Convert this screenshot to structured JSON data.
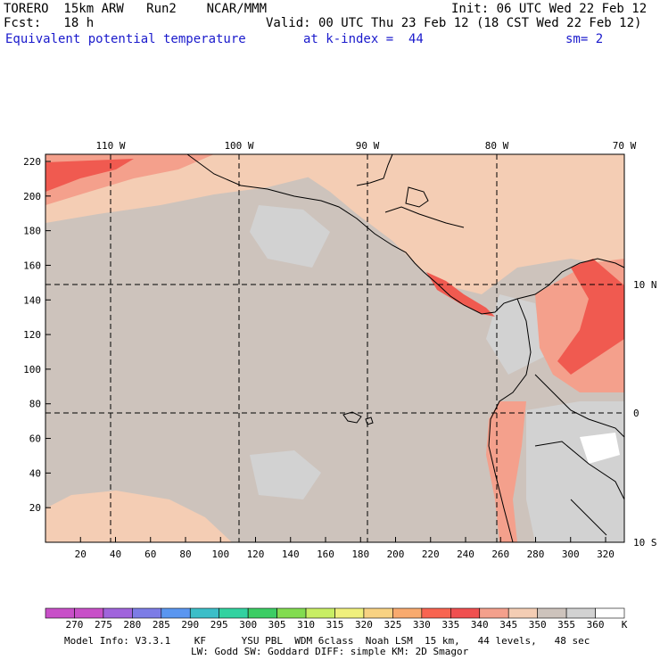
{
  "header": {
    "model": "TORERO  15km ARW   Run2    NCAR/MMM",
    "init": "Init: 06 UTC Wed 22 Feb 12",
    "fcst": "Fcst:   18 h",
    "valid": "Valid: 00 UTC Thu 23 Feb 12 (18 CST Wed 22 Feb 12)",
    "field": "Equivalent potential temperature",
    "level": "at k-index =  44",
    "smooth": "sm= 2"
  },
  "axes": {
    "lon_labels": [
      "110 W",
      "100 W",
      "90 W",
      "80 W",
      "70 W"
    ],
    "lat_labels": [
      "10 N",
      "0",
      "10 S"
    ],
    "y_ticks": [
      "20",
      "40",
      "60",
      "80",
      "100",
      "120",
      "140",
      "160",
      "180",
      "200",
      "220"
    ],
    "x_ticks": [
      "20",
      "40",
      "60",
      "80",
      "100",
      "120",
      "140",
      "160",
      "180",
      "200",
      "220",
      "240",
      "260",
      "280",
      "300",
      "320"
    ]
  },
  "colorbar": {
    "labels": [
      "270",
      "275",
      "280",
      "285",
      "290",
      "295",
      "300",
      "305",
      "310",
      "315",
      "320",
      "325",
      "330",
      "335",
      "340",
      "345",
      "350",
      "355",
      "360"
    ],
    "unit": "K",
    "colors": [
      "#c850c8",
      "#a064dc",
      "#7c7ce6",
      "#5a96f0",
      "#3cbec8",
      "#32d2a0",
      "#3ccd64",
      "#82dc50",
      "#c8ee64",
      "#f0f07c",
      "#f8d282",
      "#f8aa6e",
      "#f86450",
      "#f05050",
      "#f4a08c",
      "#f4cdb4",
      "#cdc3bc",
      "#d2d2d2",
      "#ffffff"
    ]
  },
  "footer": {
    "line1": "Model Info: V3.3.1    KF      YSU PBL  WDM 6class  Noah LSM  15 km,   44 levels,   48 sec",
    "line2": "LW: Godd SW: Goddard DIFF: simple KM: 2D Smagor"
  },
  "colors": {
    "ocean": "#cdc3bc",
    "warm": "#f4cdb4",
    "hot": "#f4a08c",
    "hotter": "#f05a50",
    "cool": "#d2d2d2",
    "border": "#000000"
  }
}
